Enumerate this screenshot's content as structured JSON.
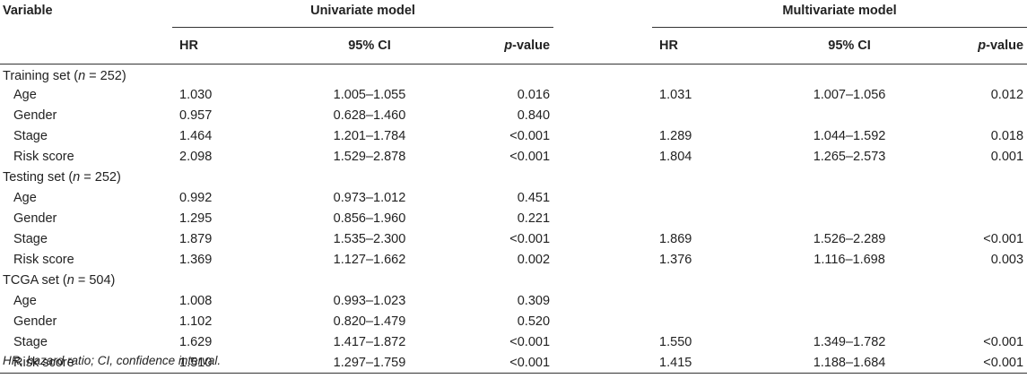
{
  "header": {
    "variable": "Variable",
    "univariate": "Univariate model",
    "multivariate": "Multivariate model",
    "hr": "HR",
    "ci": "95% CI",
    "p_italic": "p",
    "p_suffix": "-value"
  },
  "sections": [
    {
      "name": "Training set (",
      "n_label": "n",
      "n_suffix": " = 252)",
      "rows": [
        {
          "label": "Age",
          "u_hr": "1.030",
          "u_ci": "1.005–1.055",
          "u_p": "0.016",
          "m_hr": "1.031",
          "m_ci": "1.007–1.056",
          "m_p": "0.012"
        },
        {
          "label": "Gender",
          "u_hr": "0.957",
          "u_ci": "0.628–1.460",
          "u_p": "0.840",
          "m_hr": "",
          "m_ci": "",
          "m_p": ""
        },
        {
          "label": "Stage",
          "u_hr": "1.464",
          "u_ci": "1.201–1.784",
          "u_p": "<0.001",
          "m_hr": "1.289",
          "m_ci": "1.044–1.592",
          "m_p": "0.018"
        },
        {
          "label": "Risk score",
          "u_hr": "2.098",
          "u_ci": "1.529–2.878",
          "u_p": "<0.001",
          "m_hr": "1.804",
          "m_ci": "1.265–2.573",
          "m_p": "0.001"
        }
      ]
    },
    {
      "name": "Testing set (",
      "n_label": "n",
      "n_suffix": " = 252)",
      "rows": [
        {
          "label": "Age",
          "u_hr": "0.992",
          "u_ci": "0.973–1.012",
          "u_p": "0.451",
          "m_hr": "",
          "m_ci": "",
          "m_p": ""
        },
        {
          "label": "Gender",
          "u_hr": "1.295",
          "u_ci": "0.856–1.960",
          "u_p": "0.221",
          "m_hr": "",
          "m_ci": "",
          "m_p": ""
        },
        {
          "label": "Stage",
          "u_hr": "1.879",
          "u_ci": "1.535–2.300",
          "u_p": "<0.001",
          "m_hr": "1.869",
          "m_ci": "1.526–2.289",
          "m_p": "<0.001"
        },
        {
          "label": "Risk score",
          "u_hr": "1.369",
          "u_ci": "1.127–1.662",
          "u_p": "0.002",
          "m_hr": "1.376",
          "m_ci": "1.116–1.698",
          "m_p": "0.003"
        }
      ]
    },
    {
      "name": "TCGA set (",
      "n_label": "n",
      "n_suffix": " = 504)",
      "rows": [
        {
          "label": "Age",
          "u_hr": "1.008",
          "u_ci": "0.993–1.023",
          "u_p": "0.309",
          "m_hr": "",
          "m_ci": "",
          "m_p": ""
        },
        {
          "label": "Gender",
          "u_hr": "1.102",
          "u_ci": "0.820–1.479",
          "u_p": "0.520",
          "m_hr": "",
          "m_ci": "",
          "m_p": ""
        },
        {
          "label": "Stage",
          "u_hr": "1.629",
          "u_ci": "1.417–1.872",
          "u_p": "<0.001",
          "m_hr": "1.550",
          "m_ci": "1.349–1.782",
          "m_p": "<0.001"
        },
        {
          "label": "Risk score",
          "u_hr": "1.510",
          "u_ci": "1.297–1.759",
          "u_p": "<0.001",
          "m_hr": "1.415",
          "m_ci": "1.188–1.684",
          "m_p": "<0.001"
        }
      ]
    }
  ],
  "footnote": "HR, hazard ratio; CI, confidence interval."
}
